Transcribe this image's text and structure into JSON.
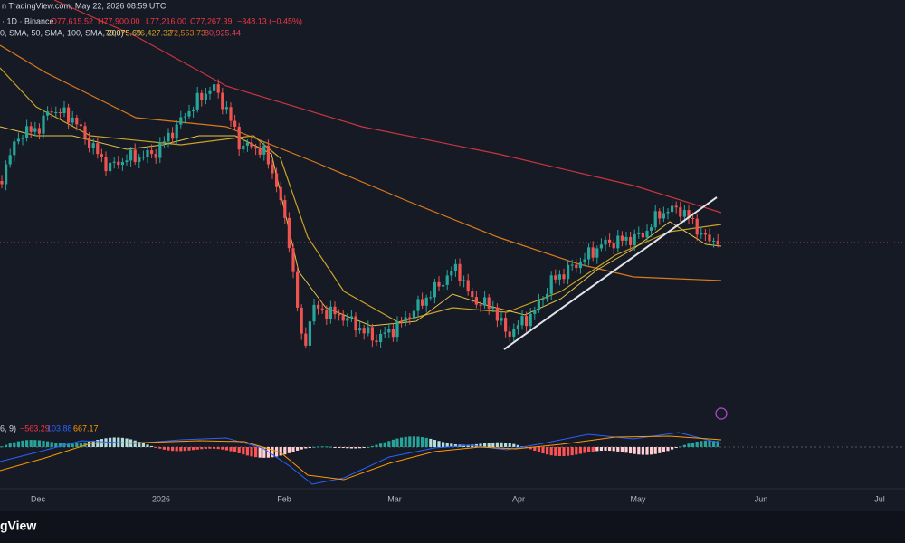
{
  "header": {
    "source": "n TradingView.com, May 22, 2026 08:59 UTC",
    "symbol": "· 1D · Binance",
    "open": "O77,615.52",
    "high": "H77,900.00",
    "low": "L77,216.00",
    "close": "C77,267.39",
    "change": "−348.13 (−0.45%)"
  },
  "indicators": {
    "label": "0, SMA, 50, SMA, 100, SMA, 200)",
    "values": [
      "79,375.69",
      "76,427.32",
      "72,553.73",
      "80,925.44"
    ]
  },
  "macd": {
    "label": "6, 9)",
    "values": [
      "−563.29",
      "103.88",
      "667.17"
    ]
  },
  "time_axis": [
    "Dec",
    "2026",
    "Feb",
    "Mar",
    "Apr",
    "May",
    "Jun",
    "Jul"
  ],
  "footer": {
    "brand": "gView"
  }
}
